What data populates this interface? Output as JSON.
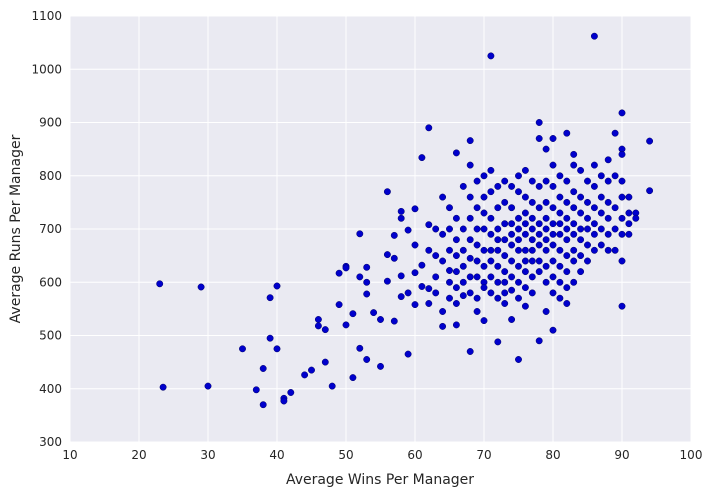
{
  "chart_data": {
    "type": "scatter",
    "title": "",
    "xlabel": "Average Wins Per Manager",
    "ylabel": "Average Runs Per Manager",
    "xlim": [
      10,
      100
    ],
    "ylim": [
      300,
      1100
    ],
    "xticks": [
      10,
      20,
      30,
      40,
      50,
      60,
      70,
      80,
      90,
      100
    ],
    "yticks": [
      300,
      400,
      500,
      600,
      700,
      800,
      900,
      1000,
      1100
    ],
    "grid": true,
    "legend": "none",
    "colors": {
      "background": "#eaeaf2",
      "grid": "#ffffff",
      "point": "#0000cc",
      "point_edge": "#000066"
    },
    "series": [
      {
        "points": [
          [
            23,
            597
          ],
          [
            23.5,
            403
          ],
          [
            29,
            591
          ],
          [
            30,
            405
          ],
          [
            35,
            475
          ],
          [
            37,
            398
          ],
          [
            38,
            370
          ],
          [
            38,
            438
          ],
          [
            39,
            571
          ],
          [
            39,
            495
          ],
          [
            40,
            593
          ],
          [
            40,
            475
          ],
          [
            41,
            382
          ],
          [
            41,
            377
          ],
          [
            42,
            393
          ],
          [
            44,
            426
          ],
          [
            45,
            435
          ],
          [
            46,
            530
          ],
          [
            46,
            518
          ],
          [
            47,
            511
          ],
          [
            47,
            450
          ],
          [
            48,
            405
          ],
          [
            49,
            617
          ],
          [
            49,
            558
          ],
          [
            50,
            630
          ],
          [
            50,
            627
          ],
          [
            50,
            520
          ],
          [
            51,
            541
          ],
          [
            51,
            421
          ],
          [
            52,
            691
          ],
          [
            52,
            610
          ],
          [
            52,
            476
          ],
          [
            53,
            600
          ],
          [
            53,
            455
          ],
          [
            53,
            578
          ],
          [
            53,
            628
          ],
          [
            54,
            543
          ],
          [
            55,
            530
          ],
          [
            55,
            442
          ],
          [
            56,
            652
          ],
          [
            56,
            602
          ],
          [
            56,
            770
          ],
          [
            57,
            688
          ],
          [
            57,
            645
          ],
          [
            57,
            527
          ],
          [
            58,
            733
          ],
          [
            58,
            720
          ],
          [
            58,
            612
          ],
          [
            58,
            573
          ],
          [
            59,
            580
          ],
          [
            59,
            465
          ],
          [
            59,
            698
          ],
          [
            60,
            670
          ],
          [
            60,
            618
          ],
          [
            60,
            738
          ],
          [
            60,
            558
          ],
          [
            61,
            834
          ],
          [
            61,
            632
          ],
          [
            61,
            592
          ],
          [
            62,
            890
          ],
          [
            62,
            708
          ],
          [
            62,
            660
          ],
          [
            62,
            588
          ],
          [
            62,
            560
          ],
          [
            63,
            700
          ],
          [
            63,
            650
          ],
          [
            63,
            610
          ],
          [
            63,
            580
          ],
          [
            64,
            760
          ],
          [
            64,
            690
          ],
          [
            64,
            640
          ],
          [
            64,
            517
          ],
          [
            64,
            545
          ],
          [
            65,
            740
          ],
          [
            65,
            700
          ],
          [
            65,
            660
          ],
          [
            65,
            622
          ],
          [
            65,
            600
          ],
          [
            65,
            570
          ],
          [
            66,
            843
          ],
          [
            66,
            720
          ],
          [
            66,
            680
          ],
          [
            66,
            650
          ],
          [
            66,
            620
          ],
          [
            66,
            590
          ],
          [
            66,
            560
          ],
          [
            66,
            520
          ],
          [
            67,
            780
          ],
          [
            67,
            700
          ],
          [
            67,
            660
          ],
          [
            67,
            630
          ],
          [
            67,
            600
          ],
          [
            67,
            575
          ],
          [
            68,
            866
          ],
          [
            68,
            820
          ],
          [
            68,
            760
          ],
          [
            68,
            720
          ],
          [
            68,
            680
          ],
          [
            68,
            645
          ],
          [
            68,
            610
          ],
          [
            68,
            580
          ],
          [
            68,
            470
          ],
          [
            69,
            790
          ],
          [
            69,
            740
          ],
          [
            69,
            700
          ],
          [
            69,
            670
          ],
          [
            69,
            640
          ],
          [
            69,
            610
          ],
          [
            69,
            570
          ],
          [
            69,
            545
          ],
          [
            70,
            800
          ],
          [
            70,
            760
          ],
          [
            70,
            730
          ],
          [
            70,
            700
          ],
          [
            70,
            660
          ],
          [
            70,
            630
          ],
          [
            70,
            600
          ],
          [
            70,
            590
          ],
          [
            70,
            528
          ],
          [
            71,
            1025
          ],
          [
            71,
            810
          ],
          [
            71,
            770
          ],
          [
            71,
            720
          ],
          [
            71,
            690
          ],
          [
            71,
            660
          ],
          [
            71,
            640
          ],
          [
            71,
            610
          ],
          [
            71,
            580
          ],
          [
            72,
            780
          ],
          [
            72,
            740
          ],
          [
            72,
            700
          ],
          [
            72,
            680
          ],
          [
            72,
            660
          ],
          [
            72,
            630
          ],
          [
            72,
            600
          ],
          [
            72,
            570
          ],
          [
            72,
            488
          ],
          [
            73,
            790
          ],
          [
            73,
            750
          ],
          [
            73,
            710
          ],
          [
            73,
            680
          ],
          [
            73,
            650
          ],
          [
            73,
            620
          ],
          [
            73,
            600
          ],
          [
            73,
            580
          ],
          [
            73,
            560
          ],
          [
            74,
            780
          ],
          [
            74,
            740
          ],
          [
            74,
            710
          ],
          [
            74,
            690
          ],
          [
            74,
            670
          ],
          [
            74,
            640
          ],
          [
            74,
            610
          ],
          [
            74,
            585
          ],
          [
            74,
            530
          ],
          [
            75,
            800
          ],
          [
            75,
            770
          ],
          [
            75,
            720
          ],
          [
            75,
            700
          ],
          [
            75,
            680
          ],
          [
            75,
            660
          ],
          [
            75,
            630
          ],
          [
            75,
            600
          ],
          [
            75,
            570
          ],
          [
            75,
            455
          ],
          [
            76,
            810
          ],
          [
            76,
            760
          ],
          [
            76,
            730
          ],
          [
            76,
            710
          ],
          [
            76,
            690
          ],
          [
            76,
            660
          ],
          [
            76,
            640
          ],
          [
            76,
            620
          ],
          [
            76,
            590
          ],
          [
            76,
            555
          ],
          [
            77,
            790
          ],
          [
            77,
            750
          ],
          [
            77,
            720
          ],
          [
            77,
            700
          ],
          [
            77,
            680
          ],
          [
            77,
            660
          ],
          [
            77,
            640
          ],
          [
            77,
            610
          ],
          [
            77,
            580
          ],
          [
            78,
            900
          ],
          [
            78,
            870
          ],
          [
            78,
            780
          ],
          [
            78,
            740
          ],
          [
            78,
            710
          ],
          [
            78,
            690
          ],
          [
            78,
            670
          ],
          [
            78,
            640
          ],
          [
            78,
            620
          ],
          [
            78,
            490
          ],
          [
            79,
            850
          ],
          [
            79,
            790
          ],
          [
            79,
            750
          ],
          [
            79,
            720
          ],
          [
            79,
            700
          ],
          [
            79,
            680
          ],
          [
            79,
            660
          ],
          [
            79,
            630
          ],
          [
            79,
            600
          ],
          [
            79,
            545
          ],
          [
            80,
            870
          ],
          [
            80,
            820
          ],
          [
            80,
            780
          ],
          [
            80,
            740
          ],
          [
            80,
            710
          ],
          [
            80,
            690
          ],
          [
            80,
            670
          ],
          [
            80,
            640
          ],
          [
            80,
            610
          ],
          [
            80,
            580
          ],
          [
            80,
            510
          ],
          [
            81,
            800
          ],
          [
            81,
            760
          ],
          [
            81,
            730
          ],
          [
            81,
            710
          ],
          [
            81,
            690
          ],
          [
            81,
            660
          ],
          [
            81,
            630
          ],
          [
            81,
            600
          ],
          [
            81,
            570
          ],
          [
            82,
            880
          ],
          [
            82,
            790
          ],
          [
            82,
            750
          ],
          [
            82,
            720
          ],
          [
            82,
            700
          ],
          [
            82,
            680
          ],
          [
            82,
            650
          ],
          [
            82,
            620
          ],
          [
            82,
            590
          ],
          [
            82,
            560
          ],
          [
            83,
            840
          ],
          [
            83,
            820
          ],
          [
            83,
            770
          ],
          [
            83,
            740
          ],
          [
            83,
            710
          ],
          [
            83,
            690
          ],
          [
            83,
            660
          ],
          [
            83,
            640
          ],
          [
            83,
            600
          ],
          [
            84,
            810
          ],
          [
            84,
            760
          ],
          [
            84,
            730
          ],
          [
            84,
            700
          ],
          [
            84,
            680
          ],
          [
            84,
            650
          ],
          [
            84,
            620
          ],
          [
            85,
            790
          ],
          [
            85,
            750
          ],
          [
            85,
            720
          ],
          [
            85,
            700
          ],
          [
            85,
            670
          ],
          [
            85,
            640
          ],
          [
            86,
            1062
          ],
          [
            86,
            820
          ],
          [
            86,
            780
          ],
          [
            86,
            740
          ],
          [
            86,
            710
          ],
          [
            86,
            690
          ],
          [
            86,
            660
          ],
          [
            87,
            800
          ],
          [
            87,
            760
          ],
          [
            87,
            730
          ],
          [
            87,
            700
          ],
          [
            87,
            670
          ],
          [
            88,
            830
          ],
          [
            88,
            790
          ],
          [
            88,
            750
          ],
          [
            88,
            720
          ],
          [
            88,
            690
          ],
          [
            88,
            660
          ],
          [
            89,
            880
          ],
          [
            89,
            800
          ],
          [
            89,
            740
          ],
          [
            89,
            700
          ],
          [
            89,
            660
          ],
          [
            90,
            918
          ],
          [
            90,
            850
          ],
          [
            90,
            840
          ],
          [
            90,
            790
          ],
          [
            90,
            760
          ],
          [
            90,
            720
          ],
          [
            90,
            690
          ],
          [
            90,
            640
          ],
          [
            90,
            555
          ],
          [
            91,
            760
          ],
          [
            91,
            730
          ],
          [
            91,
            710
          ],
          [
            91,
            690
          ],
          [
            92,
            730
          ],
          [
            92,
            720
          ],
          [
            94,
            865
          ],
          [
            94,
            772
          ]
        ]
      }
    ]
  }
}
